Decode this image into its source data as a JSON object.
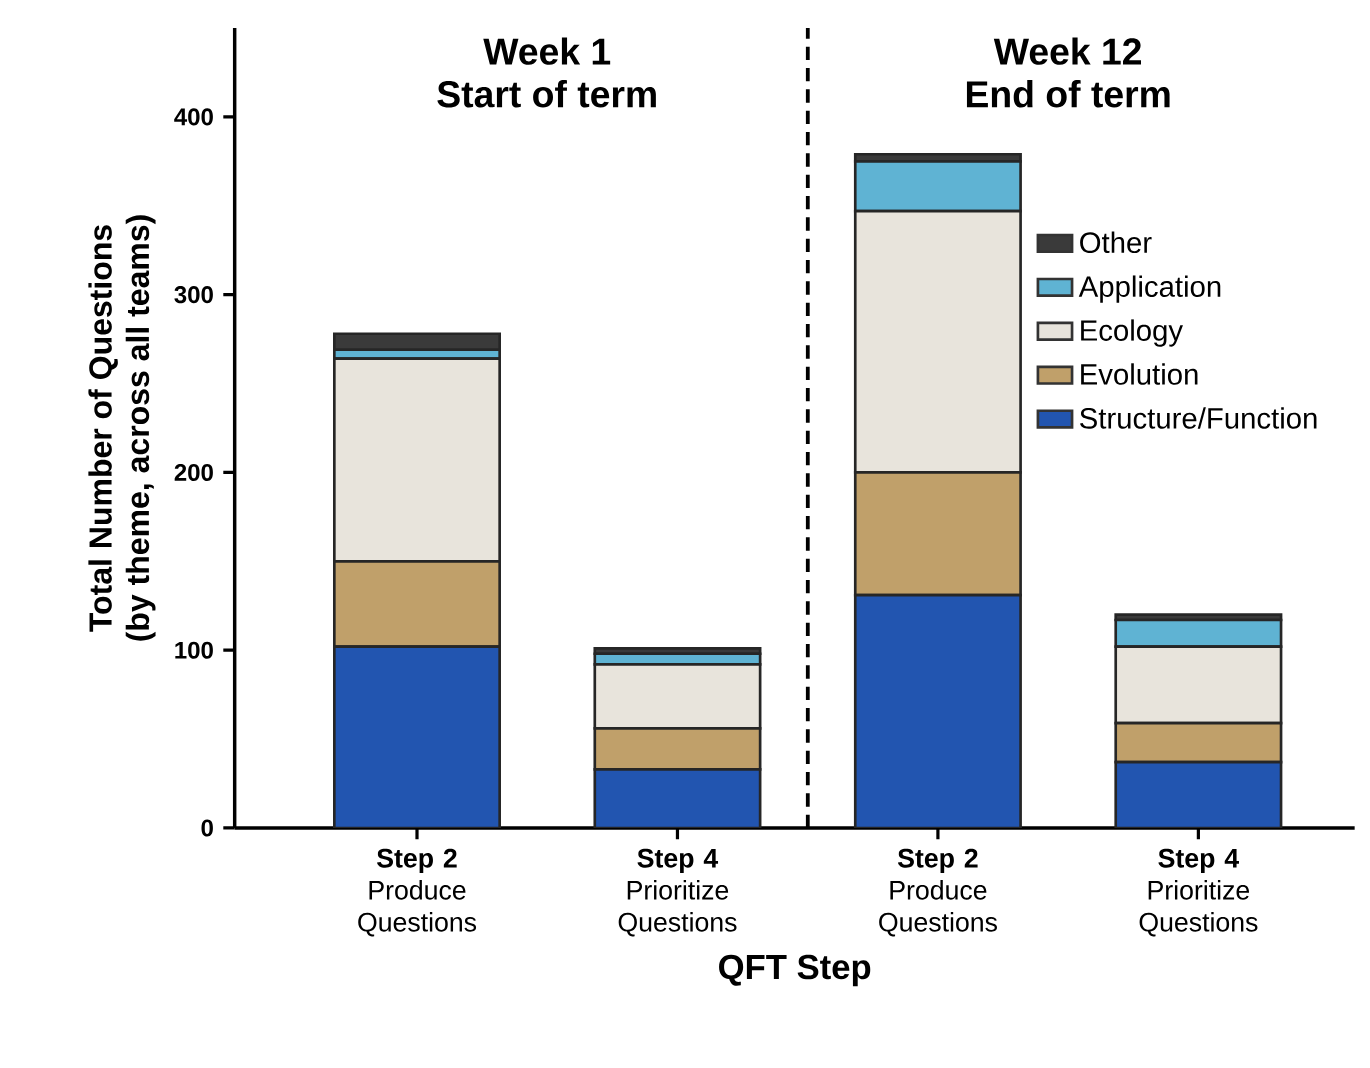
{
  "chart_data": {
    "type": "bar",
    "stacked": true,
    "xlabel": "QFT Step",
    "ylabel": "Total Number of Questions\n(by theme, across all teams)",
    "categories": [
      "**Step 2** Produce Questions",
      "**Step 4** Prioritize Questions",
      "**Step 2** Produce Questions",
      "**Step 4** Prioritize Questions"
    ],
    "series": [
      {
        "name": "Structure/Function",
        "color": "#2255b0",
        "values": [
          102,
          33,
          131,
          37
        ]
      },
      {
        "name": "Evolution",
        "color": "#c0a06a",
        "values": [
          48,
          23,
          69,
          22
        ]
      },
      {
        "name": "Ecology",
        "color": "#e8e4dc",
        "values": [
          114,
          36,
          147,
          43
        ]
      },
      {
        "name": "Application",
        "color": "#5fb3d3",
        "values": [
          5,
          6,
          28,
          15
        ]
      },
      {
        "name": "Other",
        "color": "#3a3a3a",
        "values": [
          9,
          3,
          4,
          3
        ]
      }
    ],
    "ylim": [
      0,
      450
    ],
    "yticks": [
      0,
      100,
      200,
      300,
      400
    ],
    "annotations": [
      "Week 1",
      "Start of term",
      "Week 12",
      "End of term"
    ],
    "legend": "right",
    "grid": false
  }
}
